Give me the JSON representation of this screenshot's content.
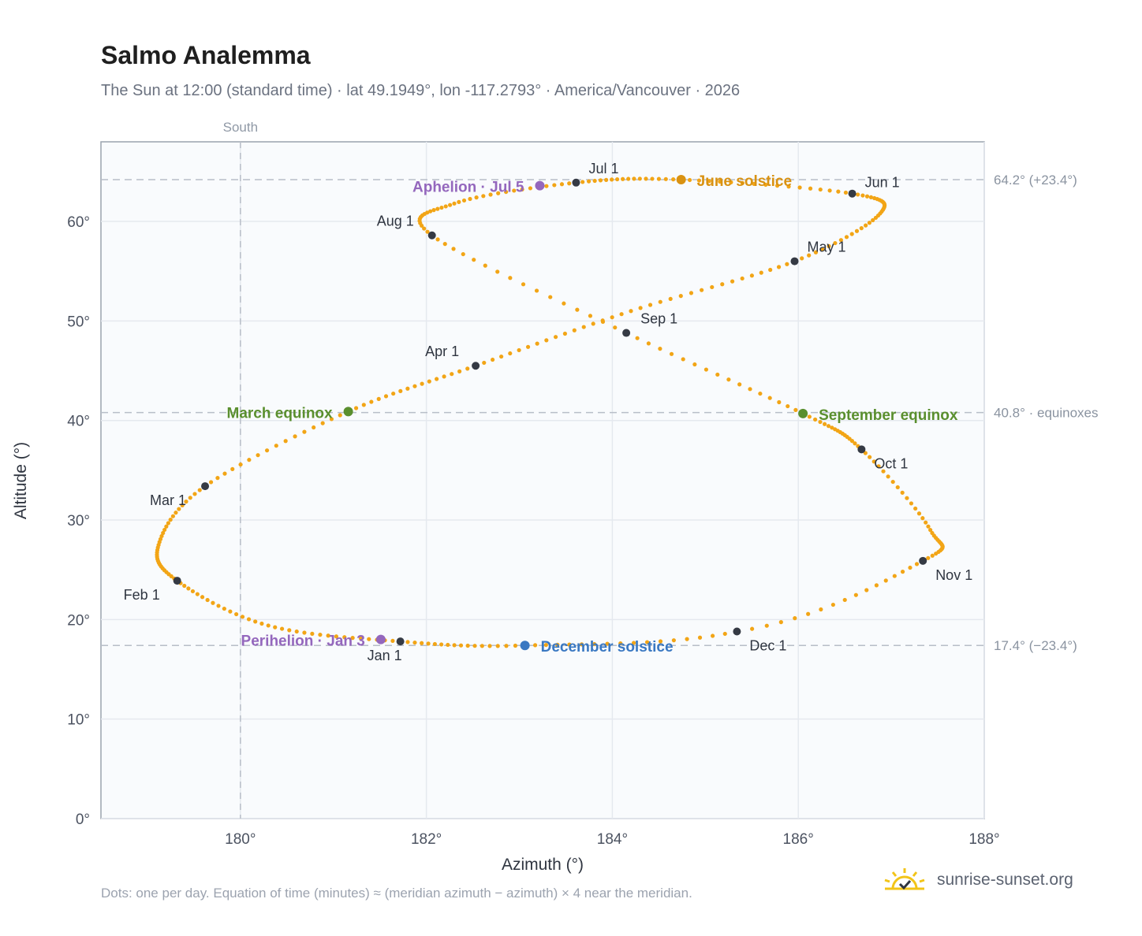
{
  "header": {
    "title": "Salmo Analemma",
    "subtitle": "The Sun at 12:00 (standard time) · lat 49.1949°, lon -117.2793° · America/Vancouver · 2026"
  },
  "footer": {
    "note": "Dots: one per day. Equation of time (minutes) ≈ (meridian azimuth − azimuth) × 4 near the meridian.",
    "brand": "sunrise-sunset.org"
  },
  "colors": {
    "analemma": "#f2a516",
    "month_marker": "#353a44",
    "equinox": "#5a8f2e",
    "june_solstice": "#d99212",
    "december_solstice": "#3a78c2",
    "apsis": "#9467bd",
    "grid": "#e5e9ef",
    "plot_bg": "#f9fbfd",
    "ref_line": "#b8bec8",
    "brand_sun": "#f2c418"
  },
  "chart_data": {
    "type": "scatter",
    "xlabel": "Azimuth (°)",
    "ylabel": "Altitude (°)",
    "xlim": [
      178.5,
      188.0
    ],
    "ylim": [
      0,
      68
    ],
    "x_ticks": [
      180,
      182,
      184,
      186,
      188
    ],
    "x_tick_labels": [
      "180°",
      "182°",
      "184°",
      "186°",
      "188°"
    ],
    "y_ticks": [
      0,
      10,
      20,
      30,
      40,
      50,
      60
    ],
    "y_tick_labels": [
      "0°",
      "10°",
      "20°",
      "30°",
      "40°",
      "50°",
      "60°"
    ],
    "grid": true,
    "meridian": {
      "azimuth": 180,
      "label": "South"
    },
    "reference_lines": [
      {
        "altitude": 64.2,
        "label": "64.2° (+23.4°)"
      },
      {
        "altitude": 40.8,
        "label": "40.8° · equinoxes"
      },
      {
        "altitude": 17.4,
        "label": "17.4° (−23.4°)"
      }
    ],
    "month_markers": [
      {
        "label": "Jan 1",
        "azimuth": 181.72,
        "altitude": 17.8
      },
      {
        "label": "Feb 1",
        "azimuth": 179.32,
        "altitude": 23.9
      },
      {
        "label": "Mar 1",
        "azimuth": 179.62,
        "altitude": 33.4
      },
      {
        "label": "Apr 1",
        "azimuth": 182.53,
        "altitude": 45.5
      },
      {
        "label": "May 1",
        "azimuth": 185.96,
        "altitude": 56.0
      },
      {
        "label": "Jun 1",
        "azimuth": 186.58,
        "altitude": 62.8
      },
      {
        "label": "Jul 1",
        "azimuth": 183.61,
        "altitude": 63.9
      },
      {
        "label": "Aug 1",
        "azimuth": 182.06,
        "altitude": 58.6
      },
      {
        "label": "Sep 1",
        "azimuth": 184.15,
        "altitude": 48.8
      },
      {
        "label": "Oct 1",
        "azimuth": 186.68,
        "altitude": 37.1
      },
      {
        "label": "Nov 1",
        "azimuth": 187.34,
        "altitude": 25.9
      },
      {
        "label": "Dec 1",
        "azimuth": 185.34,
        "altitude": 18.8
      }
    ],
    "events": [
      {
        "label": "Perihelion · Jan 3",
        "azimuth": 181.51,
        "altitude": 18.0,
        "kind": "apsis"
      },
      {
        "label": "March equinox",
        "azimuth": 181.16,
        "altitude": 40.9,
        "kind": "equinox"
      },
      {
        "label": "June solstice",
        "azimuth": 184.74,
        "altitude": 64.2,
        "kind": "june_solstice"
      },
      {
        "label": "Aphelion · Jul 5",
        "azimuth": 183.22,
        "altitude": 63.6,
        "kind": "apsis"
      },
      {
        "label": "September equinox",
        "azimuth": 186.05,
        "altitude": 40.7,
        "kind": "equinox"
      },
      {
        "label": "December solstice",
        "azimuth": 183.06,
        "altitude": 17.4,
        "kind": "december_solstice"
      }
    ],
    "series": [
      {
        "points_per": "day",
        "path_anchors": [
          {
            "azimuth": 183.06,
            "altitude": 17.4
          },
          {
            "azimuth": 181.72,
            "altitude": 17.8
          },
          {
            "azimuth": 180.3,
            "altitude": 19.4
          },
          {
            "azimuth": 179.32,
            "altitude": 23.9
          },
          {
            "azimuth": 179.12,
            "altitude": 27.5
          },
          {
            "azimuth": 179.62,
            "altitude": 33.4
          },
          {
            "azimuth": 181.16,
            "altitude": 40.9
          },
          {
            "azimuth": 182.53,
            "altitude": 45.5
          },
          {
            "azimuth": 184.2,
            "altitude": 51.0
          },
          {
            "azimuth": 185.96,
            "altitude": 56.0
          },
          {
            "azimuth": 186.88,
            "altitude": 60.8
          },
          {
            "azimuth": 186.58,
            "altitude": 62.8
          },
          {
            "azimuth": 184.74,
            "altitude": 64.2
          },
          {
            "azimuth": 183.61,
            "altitude": 63.9
          },
          {
            "azimuth": 182.3,
            "altitude": 61.8
          },
          {
            "azimuth": 182.06,
            "altitude": 58.6
          },
          {
            "azimuth": 184.15,
            "altitude": 48.8
          },
          {
            "azimuth": 186.05,
            "altitude": 40.7
          },
          {
            "azimuth": 186.68,
            "altitude": 37.1
          },
          {
            "azimuth": 187.42,
            "altitude": 29.0
          },
          {
            "azimuth": 187.34,
            "altitude": 25.9
          },
          {
            "azimuth": 185.34,
            "altitude": 18.8
          },
          {
            "azimuth": 183.06,
            "altitude": 17.4
          }
        ]
      }
    ]
  }
}
